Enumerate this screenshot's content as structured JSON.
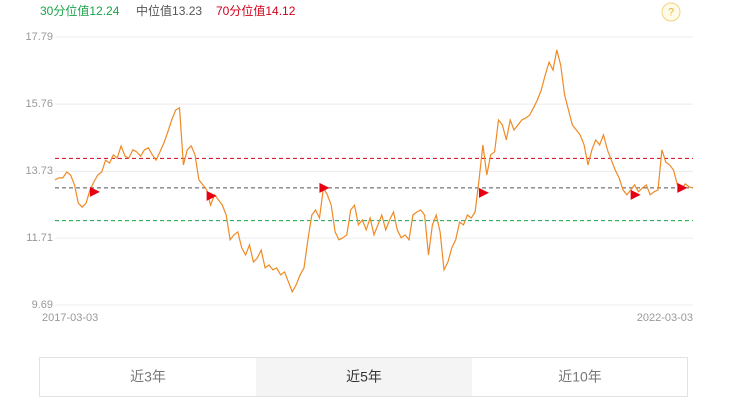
{
  "chart_data": {
    "type": "line",
    "reference_lines": [
      {
        "label": "30分位值",
        "value": 12.24,
        "color": "#1aa34a"
      },
      {
        "label": "中位值",
        "value": 13.23,
        "color": "#555555"
      },
      {
        "label": "70分位值",
        "value": 14.12,
        "color": "#d0021b"
      }
    ],
    "help": "?",
    "categories": [
      "2017-03-03",
      null,
      null,
      null,
      null,
      null,
      null,
      null,
      null,
      null,
      null,
      null,
      null,
      null,
      null,
      null,
      null,
      null,
      null,
      null,
      null,
      null,
      null,
      null,
      null,
      null,
      null,
      null,
      null,
      null,
      null,
      null,
      null,
      null,
      null,
      null,
      null,
      null,
      null,
      null,
      null,
      null,
      null,
      null,
      null,
      null,
      null,
      null,
      null,
      null,
      null,
      null,
      null,
      null,
      null,
      null,
      null,
      null,
      null,
      null,
      null,
      null,
      null,
      null,
      null,
      null,
      null,
      null,
      null,
      null,
      null,
      null,
      null,
      null,
      null,
      null,
      null,
      null,
      null,
      null,
      null,
      null,
      null,
      null,
      null,
      null,
      null,
      null,
      null,
      null,
      null,
      null,
      null,
      null,
      null,
      null,
      null,
      null,
      null,
      null,
      null,
      null,
      null,
      null,
      null,
      null,
      null,
      null,
      null,
      null,
      null,
      null,
      null,
      null,
      null,
      null,
      null,
      null,
      null,
      null,
      null,
      null,
      null,
      null,
      null,
      null,
      null,
      null,
      null,
      null,
      null,
      null,
      null,
      null,
      null,
      null,
      null,
      null,
      null,
      null,
      null,
      null,
      null,
      null,
      null,
      null,
      null,
      null,
      null,
      null,
      null,
      null,
      null,
      null,
      null,
      null,
      null,
      null,
      null,
      null,
      null,
      null,
      null,
      null,
      "2022-03-03"
    ],
    "series": [
      {
        "color": "#f08a24",
        "values": [
          13.47,
          13.53,
          13.53,
          13.71,
          13.62,
          13.32,
          12.77,
          12.65,
          12.77,
          13.17,
          13.41,
          13.62,
          13.71,
          14.07,
          13.98,
          14.23,
          14.13,
          14.5,
          14.19,
          14.13,
          14.38,
          14.32,
          14.19,
          14.38,
          14.44,
          14.23,
          14.07,
          14.32,
          14.59,
          14.92,
          15.28,
          15.58,
          15.65,
          13.92,
          14.38,
          14.5,
          14.23,
          13.47,
          13.32,
          13.17,
          12.71,
          13.02,
          12.87,
          12.71,
          12.41,
          11.66,
          11.81,
          11.9,
          11.42,
          11.2,
          11.51,
          10.99,
          11.11,
          11.35,
          10.81,
          10.9,
          10.75,
          10.81,
          10.6,
          10.69,
          10.39,
          10.09,
          10.3,
          10.6,
          10.81,
          11.66,
          12.41,
          12.56,
          12.32,
          13.23,
          13.02,
          12.71,
          11.9,
          11.66,
          11.72,
          11.81,
          12.56,
          12.71,
          12.11,
          12.26,
          11.96,
          12.32,
          11.81,
          12.11,
          12.41,
          11.96,
          12.26,
          12.5,
          11.96,
          11.72,
          11.81,
          11.66,
          12.41,
          12.5,
          12.56,
          12.41,
          11.2,
          12.11,
          12.41,
          11.9,
          10.75,
          10.99,
          11.42,
          11.66,
          12.2,
          12.11,
          12.41,
          12.32,
          12.5,
          13.47,
          14.53,
          13.62,
          14.23,
          14.32,
          15.28,
          15.13,
          14.68,
          15.28,
          14.98,
          15.13,
          15.28,
          15.34,
          15.43,
          15.65,
          15.89,
          16.19,
          16.64,
          17.03,
          16.79,
          17.4,
          16.94,
          16.04,
          15.58,
          15.13,
          14.98,
          14.83,
          14.53,
          13.92,
          14.38,
          14.68,
          14.53,
          14.83,
          14.38,
          14.07,
          13.77,
          13.53,
          13.17,
          13.02,
          13.17,
          13.32,
          13.11,
          13.23,
          13.32,
          13.02,
          13.11,
          13.17,
          14.38,
          14.01,
          13.92,
          13.77,
          13.32,
          13.17,
          13.35,
          13.26,
          13.23
        ]
      }
    ],
    "signals": {
      "color": "#e60012",
      "values": [
        null,
        null,
        null,
        null,
        null,
        null,
        null,
        null,
        null,
        null,
        13.11,
        null,
        null,
        null,
        null,
        null,
        null,
        null,
        null,
        null,
        null,
        null,
        null,
        null,
        null,
        null,
        null,
        null,
        null,
        null,
        null,
        null,
        null,
        null,
        null,
        null,
        null,
        null,
        null,
        null,
        12.99,
        null,
        null,
        null,
        null,
        null,
        null,
        null,
        null,
        null,
        null,
        null,
        null,
        null,
        null,
        null,
        null,
        null,
        null,
        null,
        null,
        null,
        null,
        null,
        null,
        null,
        null,
        null,
        null,
        13.23,
        null,
        null,
        null,
        null,
        null,
        null,
        null,
        null,
        null,
        null,
        null,
        null,
        null,
        null,
        null,
        null,
        null,
        null,
        null,
        null,
        null,
        null,
        null,
        null,
        null,
        null,
        null,
        null,
        null,
        null,
        null,
        null,
        null,
        null,
        null,
        null,
        null,
        null,
        null,
        null,
        13.08,
        null,
        null,
        null,
        null,
        null,
        null,
        null,
        null,
        null,
        null,
        null,
        null,
        null,
        null,
        null,
        null,
        null,
        null,
        null,
        null,
        null,
        null,
        null,
        null,
        null,
        null,
        null,
        null,
        null,
        null,
        null,
        null,
        null,
        null,
        null,
        null,
        null,
        null,
        13.02,
        null,
        null,
        null,
        null,
        null,
        null,
        null,
        null,
        null,
        null,
        null,
        13.23,
        null,
        null,
        null
      ]
    },
    "ylim": [
      9.69,
      17.79
    ],
    "yticks": [
      9.69,
      11.71,
      13.73,
      15.76,
      17.79
    ],
    "grid": true,
    "tabs": [
      "近3年",
      "近5年",
      "近10年"
    ],
    "selected_tab": 1
  }
}
